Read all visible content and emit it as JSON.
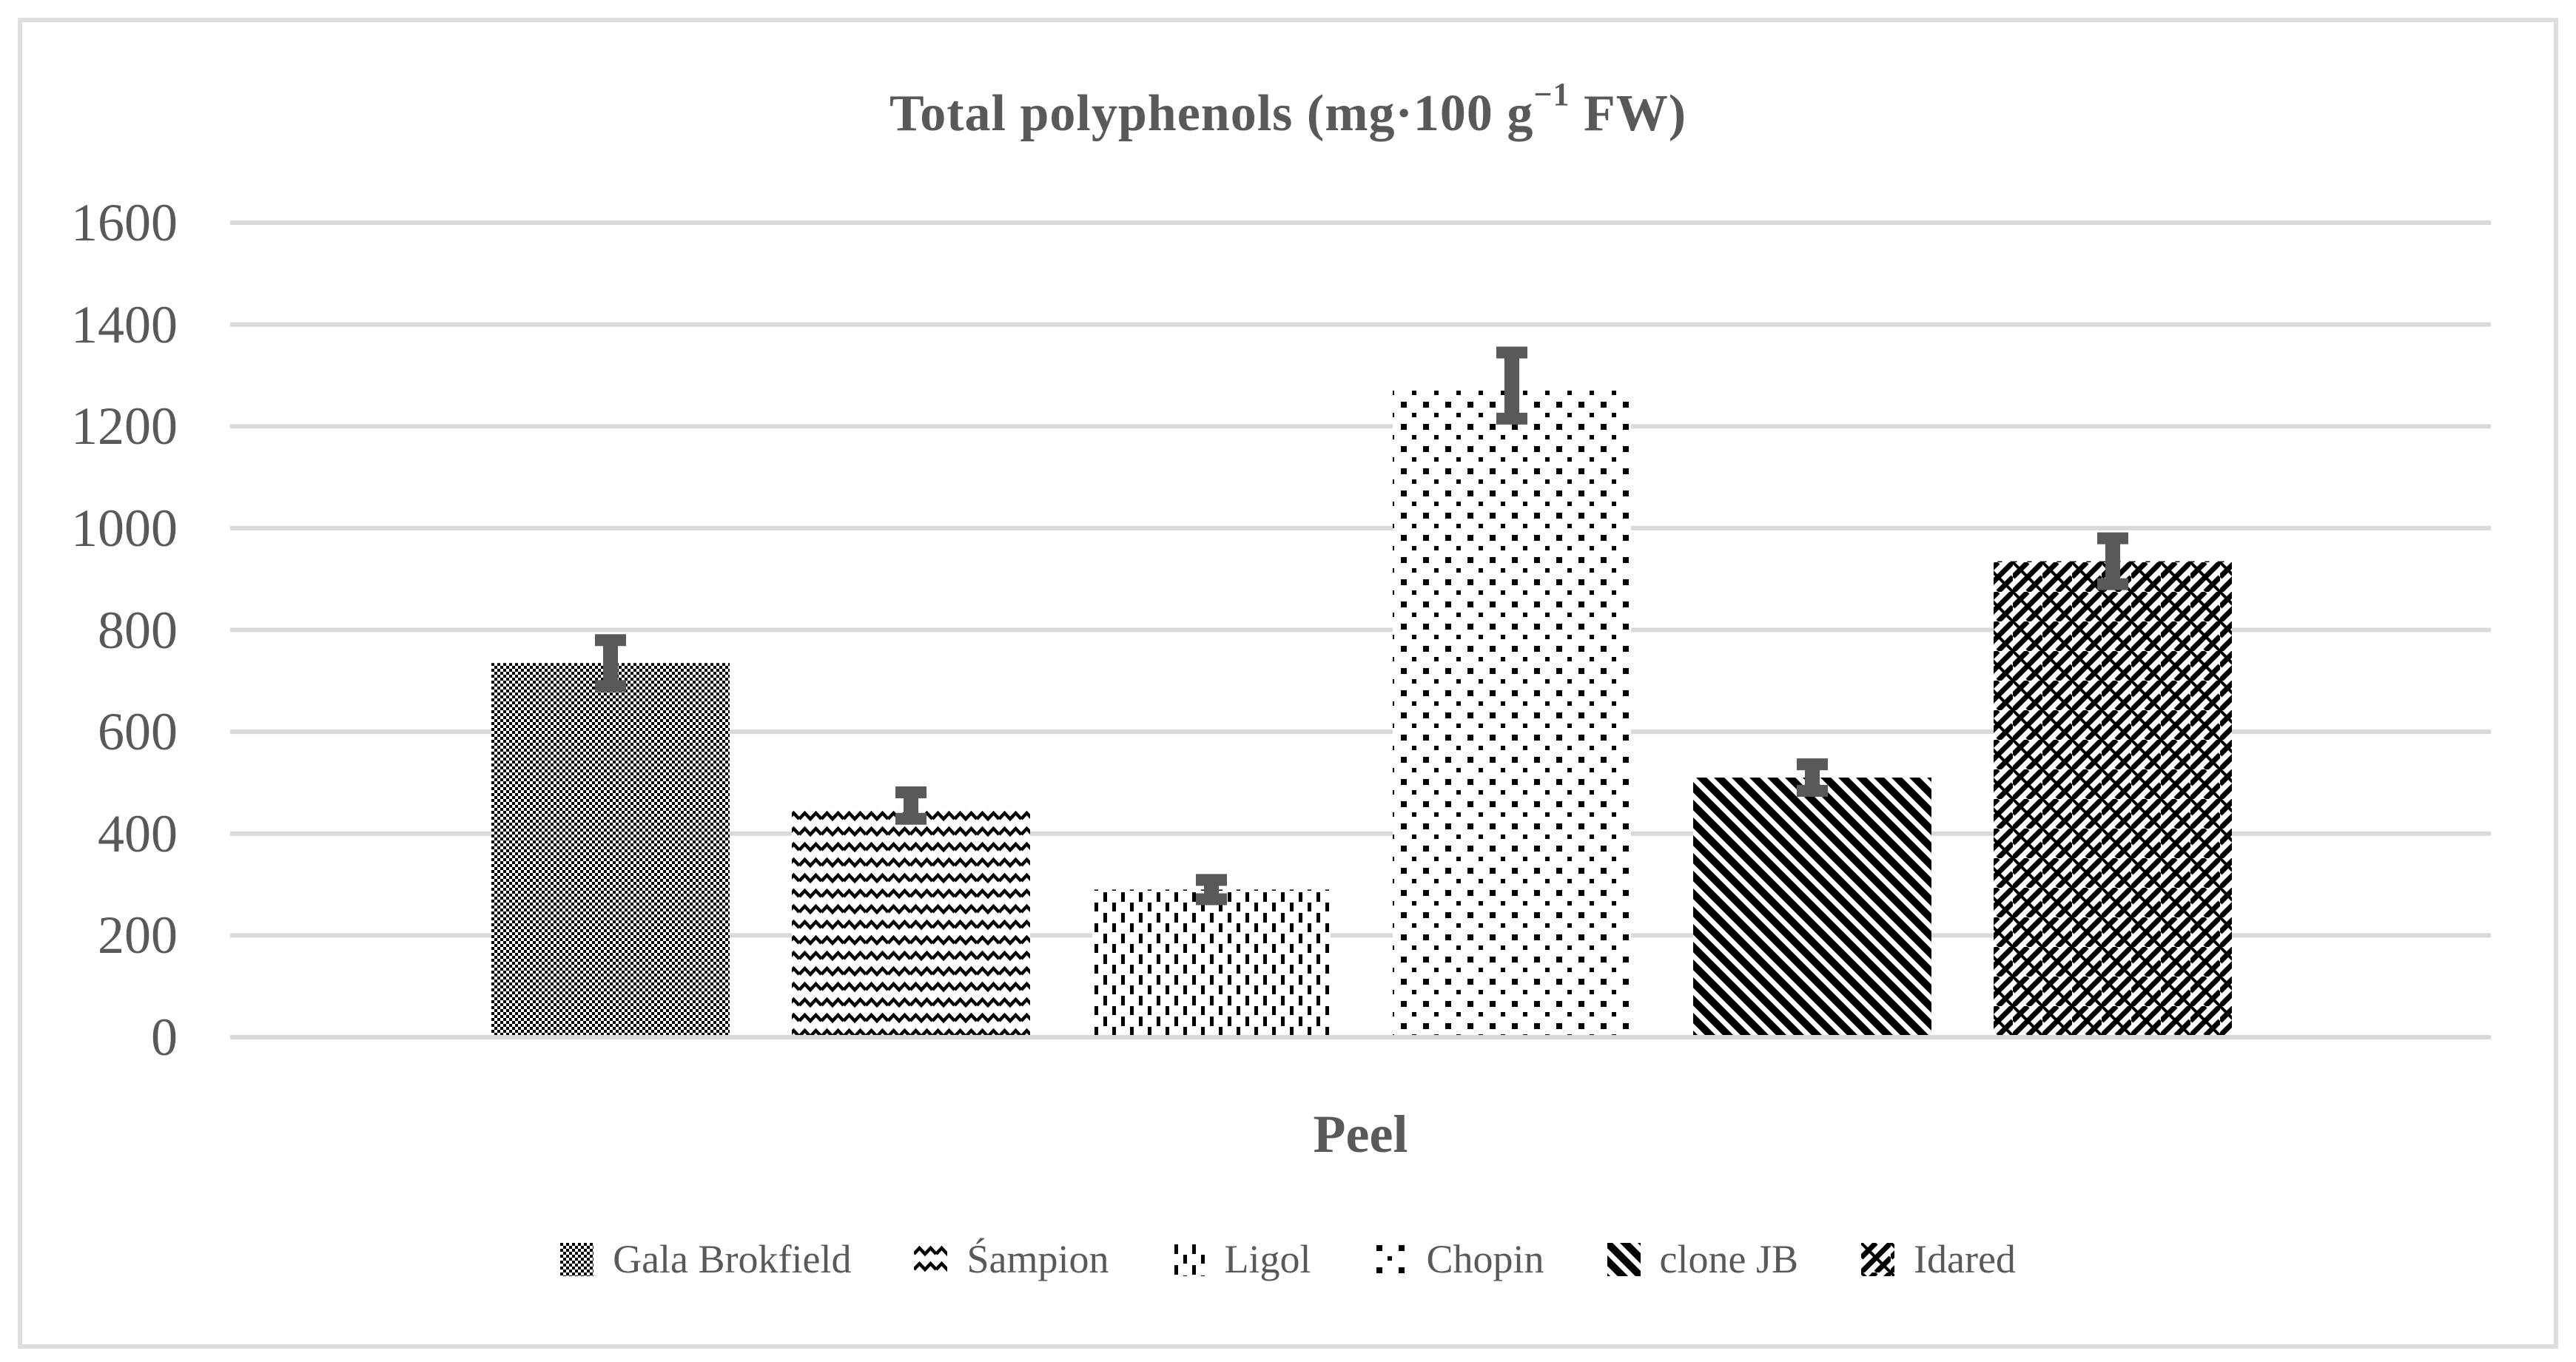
{
  "title": {
    "prefix": "Total polyphenols (mg·100 g",
    "superscript": "−1",
    "suffix": " FW)"
  },
  "chart_data": {
    "type": "bar",
    "title": "Total polyphenols (mg·100 g−1 FW)",
    "xlabel": "Peel",
    "ylabel": "",
    "categories": [
      "Peel"
    ],
    "ylim": [
      0,
      1600
    ],
    "yticks": [
      0,
      200,
      400,
      600,
      800,
      1000,
      1200,
      1400,
      1600
    ],
    "grid": true,
    "legend_position": "bottom",
    "series": [
      {
        "name": "Gala Brokfield",
        "value": 735,
        "error": 45,
        "pattern": "checker"
      },
      {
        "name": "Śampion",
        "value": 455,
        "error": 26,
        "pattern": "wave"
      },
      {
        "name": "Ligol",
        "value": 290,
        "error": 19,
        "pattern": "dash-vertical"
      },
      {
        "name": "Chopin",
        "value": 1280,
        "error": 65,
        "pattern": "dot-sparse"
      },
      {
        "name": "clone JB",
        "value": 510,
        "error": 26,
        "pattern": "diagonal-down-bold"
      },
      {
        "name": "Idared",
        "value": 935,
        "error": 45,
        "pattern": "diagonal-weave"
      }
    ]
  },
  "colors": {
    "background": "#FFFFFF",
    "text": "#595959",
    "gridline": "#D9D9D9",
    "axis_line": "#D9D9D9",
    "bar_pattern": "#000000",
    "error_bar": "#595959",
    "frame_border": "#DEDEDE"
  }
}
